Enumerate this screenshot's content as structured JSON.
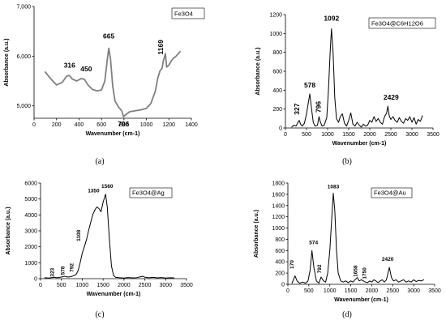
{
  "chart_data": [
    {
      "panel": "a",
      "type": "line",
      "caption": "(a)",
      "title": "",
      "legend": "Fe3O4",
      "xlabel": "Wavenumber (cm-1)",
      "ylabel": "Absorbance (a.u.)",
      "xlim": [
        0,
        1400
      ],
      "ylim": [
        4750,
        7000
      ],
      "xticks": [
        0,
        200,
        400,
        600,
        800,
        1000,
        1200,
        1400
      ],
      "xtick_labels": [
        "0",
        "200",
        "400",
        "600",
        "800",
        "1000",
        "1200",
        "1400"
      ],
      "yticks": [
        5000,
        6000,
        7000
      ],
      "ytick_labels": [
        "5,000",
        "6,000",
        "7,000"
      ],
      "color": "#808080",
      "series": [
        {
          "x": [
            100,
            150,
            200,
            250,
            290,
            316,
            340,
            380,
            420,
            450,
            480,
            520,
            560,
            600,
            630,
            650,
            665,
            680,
            700,
            720,
            750,
            780,
            796,
            820,
            850,
            900,
            950,
            1000,
            1040,
            1080,
            1100,
            1120,
            1140,
            1150,
            1169,
            1180,
            1200,
            1220,
            1240,
            1260,
            1280,
            1300
          ],
          "y": [
            5680,
            5540,
            5420,
            5470,
            5600,
            5610,
            5540,
            5500,
            5550,
            5530,
            5420,
            5330,
            5300,
            5320,
            5500,
            5900,
            6160,
            5950,
            5400,
            5100,
            4980,
            4900,
            4780,
            4830,
            4880,
            4900,
            4920,
            4950,
            5050,
            5300,
            5550,
            5700,
            5760,
            5900,
            6050,
            5780,
            5820,
            5900,
            5960,
            5990,
            6040,
            6090
          ]
        }
      ],
      "annotations": [
        {
          "label": "316",
          "x": 316,
          "y": 5610
        },
        {
          "label": "450",
          "x": 450,
          "y": 5530
        },
        {
          "label": "665",
          "x": 665,
          "y": 6160
        },
        {
          "label": "796",
          "x": 796,
          "y": 4780
        },
        {
          "label": "1169",
          "x": 1169,
          "y": 6050
        }
      ]
    },
    {
      "panel": "b",
      "type": "line",
      "caption": "(b)",
      "title": "",
      "legend": "Fe3O4@C6H12O6",
      "xlabel": "Wavenumber (cm-1)",
      "ylabel": "Absorbance (a.u.)",
      "xlim": [
        0,
        3500
      ],
      "ylim": [
        0,
        1200
      ],
      "xticks": [
        0,
        500,
        1000,
        1500,
        2000,
        2500,
        3000,
        3500
      ],
      "xtick_labels": [
        "0",
        "500",
        "1000",
        "1500",
        "2000",
        "2500",
        "3000",
        "3500"
      ],
      "yticks": [
        0,
        200,
        400,
        600,
        800,
        1000,
        1200
      ],
      "ytick_labels": [
        "0",
        "200",
        "400",
        "600",
        "800",
        "1000",
        "1200"
      ],
      "color": "#000000",
      "series": [
        {
          "x": [
            150,
            200,
            250,
            300,
            327,
            360,
            400,
            450,
            500,
            540,
            578,
            620,
            660,
            700,
            760,
            796,
            830,
            870,
            920,
            980,
            1020,
            1060,
            1092,
            1130,
            1170,
            1210,
            1260,
            1300,
            1350,
            1400,
            1450,
            1500,
            1550,
            1600,
            1650,
            1700,
            1750,
            1800,
            1850,
            1900,
            1950,
            2000,
            2050,
            2100,
            2150,
            2200,
            2250,
            2300,
            2350,
            2400,
            2429,
            2460,
            2500,
            2550,
            2600,
            2650,
            2700,
            2750,
            2800,
            2850,
            2900,
            2950,
            3000,
            3050,
            3100,
            3150,
            3200,
            3250
          ],
          "y": [
            10,
            30,
            20,
            60,
            80,
            40,
            20,
            50,
            150,
            260,
            360,
            200,
            60,
            20,
            30,
            120,
            60,
            20,
            30,
            110,
            400,
            800,
            1050,
            800,
            320,
            100,
            60,
            120,
            150,
            50,
            20,
            80,
            160,
            40,
            20,
            60,
            30,
            10,
            40,
            20,
            30,
            80,
            60,
            120,
            70,
            100,
            60,
            40,
            120,
            160,
            230,
            130,
            90,
            120,
            80,
            60,
            110,
            70,
            50,
            100,
            80,
            120,
            60,
            110,
            40,
            90,
            70,
            130
          ]
        }
      ],
      "annotations": [
        {
          "label": "327",
          "x": 327,
          "y": 80
        },
        {
          "label": "578",
          "x": 578,
          "y": 360
        },
        {
          "label": "796",
          "x": 796,
          "y": 120
        },
        {
          "label": "1092",
          "x": 1092,
          "y": 1050
        },
        {
          "label": "2429",
          "x": 2429,
          "y": 230
        }
      ]
    },
    {
      "panel": "c",
      "type": "line",
      "caption": "(c)",
      "title": "",
      "legend": "Fe3O4@Ag",
      "xlabel": "Wavenumber (cm-1)",
      "ylabel": "Absorbance (a.u.)",
      "xlim": [
        0,
        3500
      ],
      "ylim": [
        0,
        6000
      ],
      "xticks": [
        0,
        500,
        1000,
        1500,
        2000,
        2500,
        3000,
        3500
      ],
      "xtick_labels": [
        "0",
        "500",
        "1000",
        "1500",
        "2000",
        "2500",
        "3000",
        "3500"
      ],
      "yticks": [
        0,
        1000,
        2000,
        3000,
        4000,
        5000,
        6000
      ],
      "ytick_labels": [
        "0",
        "1000",
        "2000",
        "3000",
        "4000",
        "5000",
        "6000"
      ],
      "color": "#000000",
      "series": [
        {
          "x": [
            100,
            200,
            300,
            323,
            400,
            500,
            578,
            650,
            720,
            792,
            850,
            900,
            950,
            1000,
            1050,
            1108,
            1150,
            1200,
            1250,
            1300,
            1350,
            1400,
            1450,
            1500,
            1560,
            1600,
            1650,
            1700,
            1750,
            1800,
            1900,
            2000,
            2100,
            2200,
            2300,
            2400,
            2450,
            2500,
            2600,
            2700,
            2800,
            2900,
            3000,
            3100,
            3200
          ],
          "y": [
            60,
            40,
            80,
            90,
            60,
            100,
            150,
            100,
            120,
            180,
            250,
            500,
            1000,
            1600,
            2000,
            2500,
            3000,
            3500,
            4000,
            4300,
            4500,
            4400,
            4200,
            4800,
            5300,
            4500,
            2500,
            800,
            200,
            80,
            60,
            40,
            70,
            50,
            60,
            120,
            150,
            90,
            60,
            80,
            50,
            70,
            40,
            60,
            50
          ]
        }
      ],
      "annotations": [
        {
          "label": "323",
          "x": 323,
          "y": 90
        },
        {
          "label": "578",
          "x": 578,
          "y": 150
        },
        {
          "label": "792",
          "x": 792,
          "y": 180
        },
        {
          "label": "1108",
          "x": 1108,
          "y": 2500
        },
        {
          "label": "1350",
          "x": 1350,
          "y": 4500
        },
        {
          "label": "1560",
          "x": 1560,
          "y": 5300
        }
      ]
    },
    {
      "panel": "d",
      "type": "line",
      "caption": "(d)",
      "title": "",
      "legend": "Fe3O4@Au",
      "xlabel": "Wavenumber (cm-1)",
      "ylabel": "Absorbance (a.u.)",
      "xlim": [
        0,
        3500
      ],
      "ylim": [
        0,
        1800
      ],
      "xticks": [
        0,
        500,
        1000,
        1500,
        2000,
        2500,
        3000,
        3500
      ],
      "xtick_labels": [
        "0",
        "500",
        "1000",
        "1500",
        "2000",
        "2500",
        "3000",
        "3500"
      ],
      "yticks": [
        0,
        200,
        400,
        600,
        800,
        1000,
        1200,
        1400,
        1600,
        1800
      ],
      "ytick_labels": [
        "0",
        "200",
        "400",
        "600",
        "800",
        "1000",
        "1200",
        "1400",
        "1600",
        "1800"
      ],
      "color": "#000000",
      "series": [
        {
          "x": [
            100,
            170,
            220,
            280,
            350,
            420,
            480,
            530,
            574,
            620,
            680,
            740,
            792,
            850,
            900,
            950,
            1000,
            1040,
            1083,
            1120,
            1160,
            1200,
            1260,
            1320,
            1380,
            1440,
            1500,
            1550,
            1600,
            1658,
            1700,
            1750,
            1800,
            1850,
            1900,
            1950,
            2000,
            2050,
            2100,
            2150,
            2200,
            2250,
            2300,
            2350,
            2420,
            2470,
            2520,
            2580,
            2640,
            2700,
            2760,
            2820,
            2880,
            2940,
            3000,
            3060,
            3120,
            3180,
            3240
          ],
          "y": [
            20,
            150,
            60,
            20,
            40,
            20,
            60,
            250,
            600,
            300,
            60,
            20,
            130,
            60,
            40,
            200,
            600,
            1100,
            1620,
            1300,
            600,
            200,
            60,
            40,
            60,
            30,
            60,
            40,
            80,
            120,
            60,
            80,
            60,
            40,
            30,
            60,
            40,
            80,
            60,
            30,
            60,
            80,
            40,
            80,
            300,
            120,
            60,
            80,
            40,
            60,
            80,
            40,
            60,
            40,
            80,
            50,
            70,
            60,
            80
          ]
        }
      ],
      "annotations": [
        {
          "label": "170",
          "x": 170,
          "y": 150
        },
        {
          "label": "574",
          "x": 574,
          "y": 600
        },
        {
          "label": "792",
          "x": 792,
          "y": 130
        },
        {
          "label": "1083",
          "x": 1083,
          "y": 1620
        },
        {
          "label": "1658",
          "x": 1658,
          "y": 120
        },
        {
          "label": "1750",
          "x": 1750,
          "y": 80
        },
        {
          "label": "2420",
          "x": 2420,
          "y": 300
        }
      ]
    }
  ]
}
